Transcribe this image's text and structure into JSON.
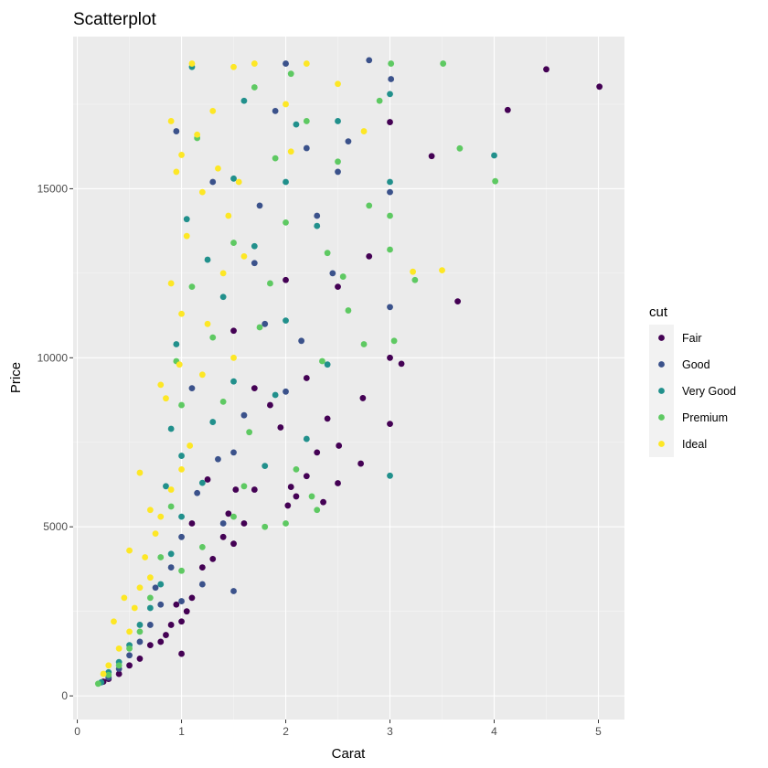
{
  "chart_data": {
    "type": "scatter",
    "title": "Scatterplot",
    "xlabel": "Carat",
    "ylabel": "Price",
    "xlim": [
      -0.04,
      5.25
    ],
    "ylim": [
      -700,
      19500
    ],
    "x_ticks": [
      0,
      1,
      2,
      3,
      4,
      5
    ],
    "y_ticks": [
      0,
      5000,
      10000,
      15000
    ],
    "grid": true,
    "legend": {
      "title": "cut",
      "position": "right"
    },
    "series": [
      {
        "name": "Fair",
        "color": "#440154",
        "points": [
          [
            5.01,
            18018
          ],
          [
            4.5,
            18531
          ],
          [
            4.13,
            17329
          ],
          [
            3.4,
            15964
          ],
          [
            3.65,
            11668
          ],
          [
            3.11,
            9823
          ],
          [
            3.0,
            16970
          ],
          [
            3.0,
            8044
          ],
          [
            2.74,
            8807
          ],
          [
            2.72,
            6870
          ],
          [
            2.5,
            6290
          ],
          [
            2.51,
            7400
          ],
          [
            2.36,
            5731
          ],
          [
            2.3,
            7200
          ],
          [
            2.2,
            6500
          ],
          [
            2.1,
            5900
          ],
          [
            2.05,
            6180
          ],
          [
            2.02,
            5630
          ],
          [
            1.95,
            7940
          ],
          [
            1.85,
            8600
          ],
          [
            1.7,
            6100
          ],
          [
            1.6,
            5100
          ],
          [
            1.5,
            4500
          ],
          [
            1.52,
            6100
          ],
          [
            1.45,
            5390
          ],
          [
            1.4,
            4700
          ],
          [
            1.3,
            4050
          ],
          [
            1.2,
            3800
          ],
          [
            1.1,
            2900
          ],
          [
            1.05,
            2500
          ],
          [
            1.0,
            1245
          ],
          [
            1.0,
            2200
          ],
          [
            0.95,
            2700
          ],
          [
            0.9,
            2100
          ],
          [
            0.85,
            1800
          ],
          [
            0.8,
            1600
          ],
          [
            0.7,
            1500
          ],
          [
            0.6,
            1100
          ],
          [
            0.5,
            900
          ],
          [
            0.4,
            650
          ],
          [
            0.3,
            500
          ],
          [
            0.25,
            420
          ],
          [
            1.5,
            10800
          ],
          [
            2.0,
            12300
          ],
          [
            1.7,
            9100
          ],
          [
            2.5,
            12100
          ],
          [
            3.0,
            10000
          ],
          [
            2.8,
            13000
          ],
          [
            1.25,
            6400
          ],
          [
            1.1,
            5100
          ],
          [
            2.2,
            9400
          ],
          [
            2.4,
            8200
          ]
        ]
      },
      {
        "name": "Good",
        "color": "#3b528b",
        "points": [
          [
            3.01,
            18242
          ],
          [
            2.8,
            18800
          ],
          [
            3.0,
            14900
          ],
          [
            3.0,
            11500
          ],
          [
            2.5,
            15500
          ],
          [
            2.45,
            12500
          ],
          [
            2.3,
            14200
          ],
          [
            2.2,
            16200
          ],
          [
            2.0,
            18700
          ],
          [
            2.0,
            9000
          ],
          [
            1.8,
            11000
          ],
          [
            1.6,
            8300
          ],
          [
            1.5,
            7200
          ],
          [
            1.5,
            3100
          ],
          [
            1.4,
            5100
          ],
          [
            1.2,
            3300
          ],
          [
            1.0,
            4700
          ],
          [
            1.0,
            2800
          ],
          [
            0.9,
            3800
          ],
          [
            0.8,
            2700
          ],
          [
            0.7,
            2100
          ],
          [
            0.6,
            1600
          ],
          [
            0.5,
            1200
          ],
          [
            0.4,
            800
          ],
          [
            0.3,
            540
          ],
          [
            1.7,
            12800
          ],
          [
            1.1,
            9100
          ],
          [
            1.3,
            15200
          ],
          [
            0.95,
            16700
          ],
          [
            1.9,
            17300
          ],
          [
            2.6,
            16400
          ],
          [
            1.35,
            7000
          ],
          [
            1.15,
            6000
          ],
          [
            0.75,
            3200
          ],
          [
            2.15,
            10500
          ],
          [
            1.75,
            14500
          ]
        ]
      },
      {
        "name": "Very Good",
        "color": "#21908c",
        "points": [
          [
            4.0,
            15984
          ],
          [
            3.0,
            6512
          ],
          [
            3.0,
            15200
          ],
          [
            3.0,
            17800
          ],
          [
            2.5,
            17000
          ],
          [
            2.3,
            13900
          ],
          [
            2.1,
            16900
          ],
          [
            2.0,
            15200
          ],
          [
            2.0,
            11100
          ],
          [
            1.9,
            8900
          ],
          [
            1.7,
            13300
          ],
          [
            1.5,
            9300
          ],
          [
            1.5,
            15300
          ],
          [
            1.3,
            8100
          ],
          [
            1.2,
            6300
          ],
          [
            1.1,
            18600
          ],
          [
            1.0,
            7100
          ],
          [
            1.0,
            5300
          ],
          [
            0.9,
            7900
          ],
          [
            0.9,
            4200
          ],
          [
            0.8,
            3300
          ],
          [
            0.7,
            2600
          ],
          [
            0.6,
            2100
          ],
          [
            0.5,
            1500
          ],
          [
            0.4,
            1000
          ],
          [
            0.3,
            700
          ],
          [
            0.23,
            400
          ],
          [
            1.4,
            11800
          ],
          [
            1.6,
            17600
          ],
          [
            2.4,
            9800
          ],
          [
            1.25,
            12900
          ],
          [
            0.95,
            10400
          ],
          [
            1.8,
            6800
          ],
          [
            2.2,
            7600
          ],
          [
            0.85,
            6200
          ],
          [
            1.05,
            14100
          ]
        ]
      },
      {
        "name": "Premium",
        "color": "#5ec962",
        "points": [
          [
            4.01,
            15223
          ],
          [
            3.67,
            16193
          ],
          [
            3.51,
            18701
          ],
          [
            3.24,
            12300
          ],
          [
            3.04,
            10500
          ],
          [
            3.0,
            14200
          ],
          [
            3.01,
            18700
          ],
          [
            2.75,
            10400
          ],
          [
            2.6,
            11400
          ],
          [
            2.5,
            15800
          ],
          [
            2.4,
            13100
          ],
          [
            2.3,
            5500
          ],
          [
            2.25,
            5900
          ],
          [
            2.2,
            17000
          ],
          [
            2.1,
            6700
          ],
          [
            2.05,
            18400
          ],
          [
            2.0,
            5100
          ],
          [
            2.0,
            14000
          ],
          [
            1.8,
            5000
          ],
          [
            1.75,
            10900
          ],
          [
            1.7,
            18000
          ],
          [
            1.6,
            6200
          ],
          [
            1.5,
            13400
          ],
          [
            1.5,
            5300
          ],
          [
            1.4,
            8700
          ],
          [
            1.3,
            10600
          ],
          [
            1.2,
            4400
          ],
          [
            1.1,
            12100
          ],
          [
            1.0,
            8600
          ],
          [
            1.0,
            3700
          ],
          [
            0.9,
            5600
          ],
          [
            0.8,
            4100
          ],
          [
            0.7,
            2900
          ],
          [
            0.6,
            1900
          ],
          [
            0.5,
            1400
          ],
          [
            0.4,
            900
          ],
          [
            0.3,
            620
          ],
          [
            0.2,
            360
          ],
          [
            2.8,
            14500
          ],
          [
            3.0,
            13200
          ],
          [
            2.9,
            17600
          ],
          [
            1.9,
            15900
          ],
          [
            2.35,
            9900
          ],
          [
            1.65,
            7800
          ],
          [
            2.55,
            12400
          ],
          [
            1.15,
            16500
          ],
          [
            0.95,
            9900
          ],
          [
            1.85,
            12200
          ]
        ]
      },
      {
        "name": "Ideal",
        "color": "#fde725",
        "points": [
          [
            3.5,
            12587
          ],
          [
            3.22,
            12545
          ],
          [
            2.75,
            16700
          ],
          [
            2.5,
            18100
          ],
          [
            2.2,
            18700
          ],
          [
            2.0,
            17500
          ],
          [
            1.7,
            18700
          ],
          [
            1.6,
            13000
          ],
          [
            1.5,
            18600
          ],
          [
            1.5,
            10000
          ],
          [
            1.3,
            17300
          ],
          [
            1.2,
            14900
          ],
          [
            1.2,
            9500
          ],
          [
            1.1,
            18700
          ],
          [
            1.0,
            16000
          ],
          [
            1.0,
            11300
          ],
          [
            1.0,
            6700
          ],
          [
            0.95,
            15500
          ],
          [
            0.9,
            17000
          ],
          [
            0.9,
            12200
          ],
          [
            0.9,
            6100
          ],
          [
            0.85,
            8800
          ],
          [
            0.8,
            9200
          ],
          [
            0.8,
            5300
          ],
          [
            0.75,
            4800
          ],
          [
            0.7,
            5500
          ],
          [
            0.7,
            3500
          ],
          [
            0.6,
            6600
          ],
          [
            0.6,
            3200
          ],
          [
            0.5,
            4300
          ],
          [
            0.5,
            1900
          ],
          [
            0.45,
            2900
          ],
          [
            0.4,
            1400
          ],
          [
            0.35,
            2200
          ],
          [
            0.3,
            900
          ],
          [
            0.25,
            650
          ],
          [
            1.4,
            12500
          ],
          [
            1.25,
            11000
          ],
          [
            1.05,
            13600
          ],
          [
            1.15,
            16600
          ],
          [
            1.35,
            15600
          ],
          [
            0.98,
            9800
          ],
          [
            1.08,
            7400
          ],
          [
            2.05,
            16100
          ],
          [
            1.55,
            15200
          ],
          [
            0.65,
            4100
          ],
          [
            0.55,
            2600
          ],
          [
            1.45,
            14200
          ]
        ]
      }
    ]
  }
}
